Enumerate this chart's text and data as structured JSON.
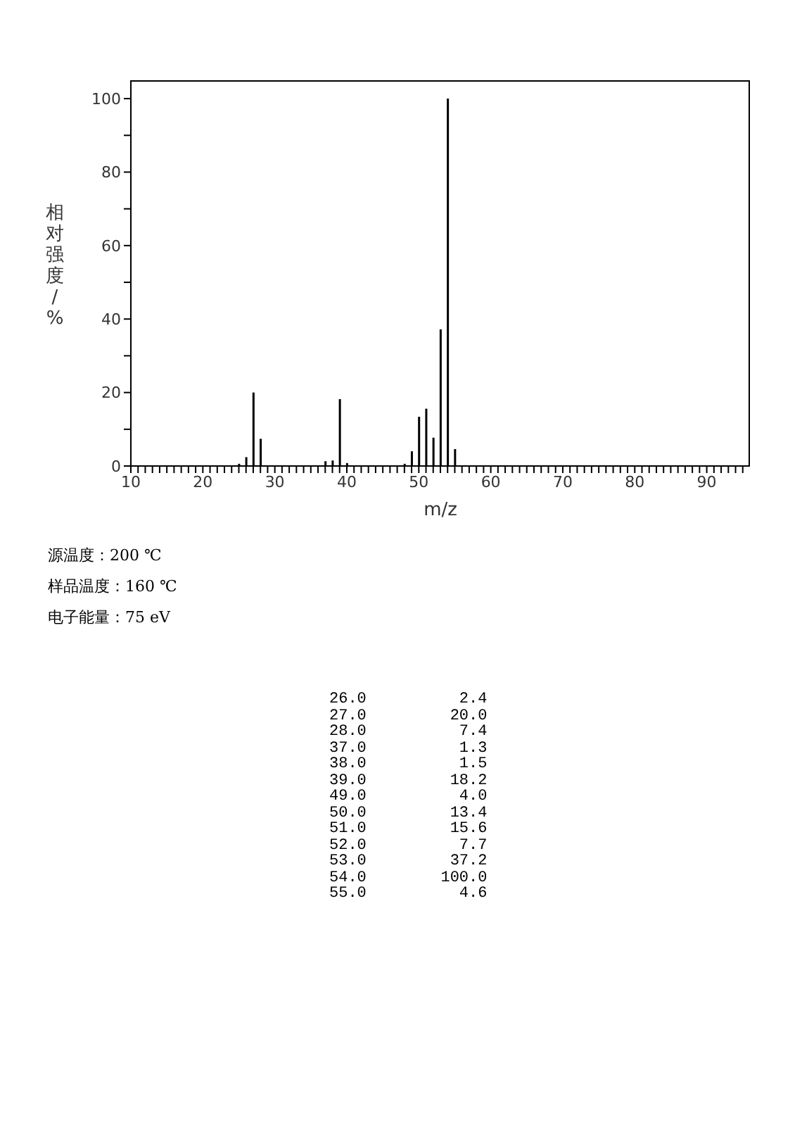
{
  "chart_data": [
    {
      "type": "bar",
      "xlabel": "m/z",
      "ylabel": "相对强度/%",
      "xlim": [
        10,
        96
      ],
      "ylim": [
        0,
        105
      ],
      "xticks": [
        10,
        {
          "value": 11,
          "label": null
        },
        {
          "value": 12,
          "label": null
        },
        {
          "value": 13,
          "label": null
        },
        {
          "value": 14,
          "label": null
        },
        {
          "value": 15,
          "label": null
        },
        {
          "value": 16,
          "label": null
        },
        {
          "value": 17,
          "label": null
        },
        {
          "value": 18,
          "label": null
        },
        {
          "value": 19,
          "label": null
        },
        20,
        {
          "value": 21,
          "label": null
        },
        {
          "value": 22,
          "label": null
        },
        {
          "value": 23,
          "label": null
        },
        {
          "value": 24,
          "label": null
        },
        {
          "value": 25,
          "label": null
        },
        {
          "value": 26,
          "label": null
        },
        {
          "value": 27,
          "label": null
        },
        {
          "value": 28,
          "label": null
        },
        {
          "value": 29,
          "label": null
        },
        30,
        {
          "value": 31,
          "label": null
        },
        {
          "value": 32,
          "label": null
        },
        {
          "value": 33,
          "label": null
        },
        {
          "value": 34,
          "label": null
        },
        {
          "value": 35,
          "label": null
        },
        {
          "value": 36,
          "label": null
        },
        {
          "value": 37,
          "label": null
        },
        {
          "value": 38,
          "label": null
        },
        {
          "value": 39,
          "label": null
        },
        40,
        {
          "value": 41,
          "label": null
        },
        {
          "value": 42,
          "label": null
        },
        {
          "value": 43,
          "label": null
        },
        {
          "value": 44,
          "label": null
        },
        {
          "value": 45,
          "label": null
        },
        {
          "value": 46,
          "label": null
        },
        {
          "value": 47,
          "label": null
        },
        {
          "value": 48,
          "label": null
        },
        {
          "value": 49,
          "label": null
        },
        50,
        {
          "value": 51,
          "label": null
        },
        {
          "value": 52,
          "label": null
        },
        {
          "value": 53,
          "label": null
        },
        {
          "value": 54,
          "label": null
        },
        {
          "value": 55,
          "label": null
        },
        {
          "value": 56,
          "label": null
        },
        {
          "value": 57,
          "label": null
        },
        {
          "value": 58,
          "label": null
        },
        {
          "value": 59,
          "label": null
        },
        60,
        {
          "value": 61,
          "label": null
        },
        {
          "value": 62,
          "label": null
        },
        {
          "value": 63,
          "label": null
        },
        {
          "value": 64,
          "label": null
        },
        {
          "value": 65,
          "label": null
        },
        {
          "value": 66,
          "label": null
        },
        {
          "value": 67,
          "label": null
        },
        {
          "value": 68,
          "label": null
        },
        {
          "value": 69,
          "label": null
        },
        70,
        {
          "value": 71,
          "label": null
        },
        {
          "value": 72,
          "label": null
        },
        {
          "value": 73,
          "label": null
        },
        {
          "value": 74,
          "label": null
        },
        {
          "value": 75,
          "label": null
        },
        {
          "value": 76,
          "label": null
        },
        {
          "value": 77,
          "label": null
        },
        {
          "value": 78,
          "label": null
        },
        {
          "value": 79,
          "label": null
        },
        80,
        {
          "value": 81,
          "label": null
        },
        {
          "value": 82,
          "label": null
        },
        {
          "value": 83,
          "label": null
        },
        {
          "value": 84,
          "label": null
        },
        {
          "value": 85,
          "label": null
        },
        {
          "value": 86,
          "label": null
        },
        {
          "value": 87,
          "label": null
        },
        {
          "value": 88,
          "label": null
        },
        {
          "value": 89,
          "label": null
        },
        90,
        {
          "value": 91,
          "label": null
        },
        {
          "value": 92,
          "label": null
        },
        {
          "value": 93,
          "label": null
        },
        {
          "value": 94,
          "label": null
        },
        {
          "value": 95,
          "label": null
        }
      ],
      "yticks": [
        0,
        {
          "value": 10,
          "label": null
        },
        20,
        {
          "value": 30,
          "label": null
        },
        40,
        {
          "value": 50,
          "label": null
        },
        60,
        {
          "value": 70,
          "label": null
        },
        80,
        {
          "value": 90,
          "label": null
        },
        100
      ],
      "series": [
        {
          "color": "#000000",
          "x": [
            25,
            26,
            27,
            28,
            37,
            38,
            39,
            40,
            48,
            49,
            50,
            51,
            52,
            53,
            54,
            55
          ],
          "values": [
            0.6,
            2.4,
            20.0,
            7.4,
            1.3,
            1.5,
            18.2,
            0.8,
            0.6,
            4.0,
            13.4,
            15.6,
            7.7,
            37.2,
            100.0,
            4.6
          ]
        }
      ],
      "annotations": [
        "源温度：200 ℃",
        "样品温度：160 ℃",
        "电子能量：75 eV"
      ]
    },
    {
      "type": "other",
      "annotations": [
        "26.0          2.4",
        "27.0         20.0",
        "28.0          7.4",
        "37.0          1.3",
        "38.0          1.5",
        "39.0         18.2",
        "49.0          4.0",
        "50.0         13.4",
        "51.0         15.6",
        "52.0          7.7",
        "53.0         37.2",
        "54.0        100.0",
        "55.0          4.6"
      ]
    }
  ]
}
